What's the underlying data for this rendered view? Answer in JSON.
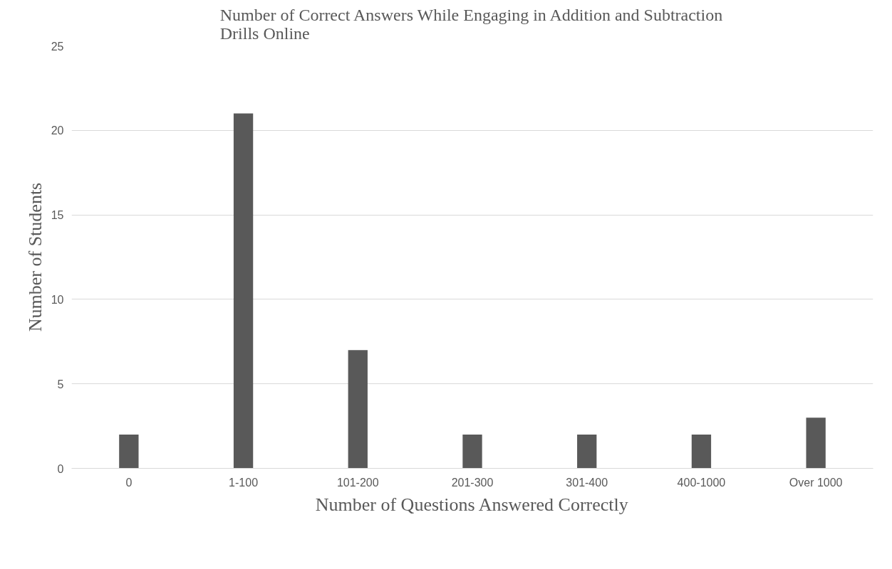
{
  "chart_data": {
    "type": "bar",
    "title": "Number of Correct Answers While Engaging in Addition and Subtraction Drills Online",
    "xlabel": "Number of Questions Answered Correctly",
    "ylabel": "Number of Students",
    "categories": [
      "0",
      "1-100",
      "101-200",
      "201-300",
      "301-400",
      "400-1000",
      "Over 1000"
    ],
    "values": [
      2,
      21,
      7,
      2,
      2,
      2,
      3
    ],
    "color": "#595959",
    "ylim": [
      0,
      25
    ],
    "yticks": [
      0,
      5,
      10,
      15,
      20,
      25
    ],
    "grid": "y"
  }
}
